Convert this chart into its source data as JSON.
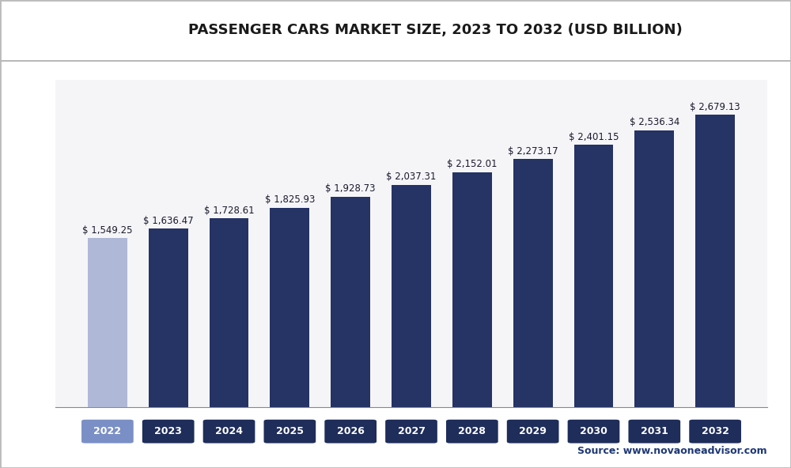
{
  "title": "PASSENGER CARS MARKET SIZE, 2023 TO 2032 (USD BILLION)",
  "years": [
    2022,
    2023,
    2024,
    2025,
    2026,
    2027,
    2028,
    2029,
    2030,
    2031,
    2032
  ],
  "values": [
    1549.25,
    1636.47,
    1728.61,
    1825.93,
    1928.73,
    2037.31,
    2152.01,
    2273.17,
    2401.15,
    2536.34,
    2679.13
  ],
  "labels": [
    "$ 1,549.25",
    "$ 1,636.47",
    "$ 1,728.61",
    "$ 1,825.93",
    "$ 1,928.73",
    "$ 2,037.31",
    "$ 2,152.01",
    "$ 2,273.17",
    "$ 2,401.15",
    "$ 2,536.34",
    "$ 2,679.13"
  ],
  "bar_colors": [
    "#b0b8d8",
    "#253365",
    "#253365",
    "#253365",
    "#253365",
    "#253365",
    "#253365",
    "#253365",
    "#253365",
    "#253365",
    "#253365"
  ],
  "tick_bg_colors": [
    "#7a8fc5",
    "#1e2d5a",
    "#1e2d5a",
    "#1e2d5a",
    "#1e2d5a",
    "#1e2d5a",
    "#1e2d5a",
    "#1e2d5a",
    "#1e2d5a",
    "#1e2d5a",
    "#1e2d5a"
  ],
  "source_text": "Source: www.novaoneadvisor.com",
  "background_color": "#ffffff",
  "plot_bg_color": "#f5f5f8",
  "grid_color": "#d8d8e8",
  "ylim": [
    0,
    3000
  ],
  "figsize": [
    10.0,
    5.92
  ],
  "dpi": 100,
  "title_fontsize": 13,
  "label_fontsize": 8.5,
  "header_bg": "#ffffff",
  "header_line_color": "#aaaaaa",
  "logo_bg": "#1e3875",
  "logo_text_color": "#ffffff",
  "logo_box_color": "#2a6099",
  "outer_border_color": "#bbbbbb"
}
